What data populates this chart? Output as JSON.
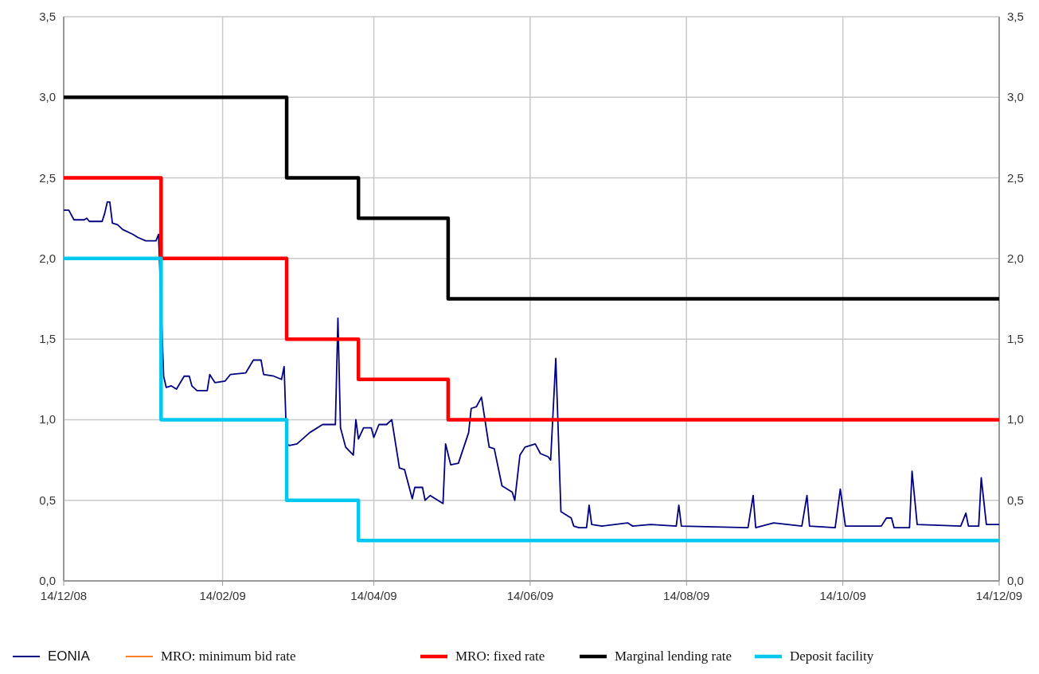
{
  "chart_data": {
    "type": "line",
    "xlim": [
      "2008-12-14",
      "2009-12-14"
    ],
    "xticks": [
      {
        "value": "2008-12-14",
        "label": "14/12/08"
      },
      {
        "value": "2009-02-14",
        "label": "14/02/09"
      },
      {
        "value": "2009-04-14",
        "label": "14/04/09"
      },
      {
        "value": "2009-06-14",
        "label": "14/06/09"
      },
      {
        "value": "2009-08-14",
        "label": "14/08/09"
      },
      {
        "value": "2009-10-14",
        "label": "14/10/09"
      },
      {
        "value": "2009-12-14",
        "label": "14/12/09"
      }
    ],
    "ylim": [
      0,
      3.5
    ],
    "yticks": [
      {
        "value": 0,
        "label": "0,0"
      },
      {
        "value": 0.5,
        "label": "0,5"
      },
      {
        "value": 1,
        "label": "1,0"
      },
      {
        "value": 1.5,
        "label": "1,5"
      },
      {
        "value": 2,
        "label": "2,0"
      },
      {
        "value": 2.5,
        "label": "2,5"
      },
      {
        "value": 3,
        "label": "3,0"
      },
      {
        "value": 3.5,
        "label": "3,5"
      }
    ],
    "y2lim": [
      0,
      3.5
    ],
    "y2ticks": [
      {
        "value": 0,
        "label": "0,0"
      },
      {
        "value": 0.5,
        "label": "0,5"
      },
      {
        "value": 1,
        "label": "1,0"
      },
      {
        "value": 1.5,
        "label": "1,5"
      },
      {
        "value": 2,
        "label": "2,0"
      },
      {
        "value": 2.5,
        "label": "2,5"
      },
      {
        "value": 3,
        "label": "3,0"
      },
      {
        "value": 3.5,
        "label": "3,5"
      }
    ],
    "grid": true,
    "legend": "bottom",
    "series": [
      {
        "name": "EONIA",
        "type": "line",
        "color": "#000080",
        "x": [
          "2008-12-14",
          "2008-12-16",
          "2008-12-18",
          "2008-12-22",
          "2008-12-23",
          "2008-12-24",
          "2008-12-29",
          "2008-12-30",
          "2008-12-31",
          "2009-01-01",
          "2009-01-02",
          "2009-01-04",
          "2009-01-06",
          "2009-01-10",
          "2009-01-12",
          "2009-01-15",
          "2009-01-19",
          "2009-01-20",
          "2009-01-22",
          "2009-01-23",
          "2009-01-25",
          "2009-01-27",
          "2009-01-30",
          "2009-02-01",
          "2009-02-02",
          "2009-02-04",
          "2009-02-08",
          "2009-02-09",
          "2009-02-11",
          "2009-02-15",
          "2009-02-17",
          "2009-02-23",
          "2009-02-26",
          "2009-03-01",
          "2009-03-02",
          "2009-03-06",
          "2009-03-09",
          "2009-03-10",
          "2009-03-11",
          "2009-03-12",
          "2009-03-15",
          "2009-03-20",
          "2009-03-25",
          "2009-03-30",
          "2009-03-31",
          "2009-04-01",
          "2009-04-03",
          "2009-04-06",
          "2009-04-07",
          "2009-04-08",
          "2009-04-10",
          "2009-04-13",
          "2009-04-14",
          "2009-04-16",
          "2009-04-19",
          "2009-04-21",
          "2009-04-24",
          "2009-04-26",
          "2009-04-29",
          "2009-04-30",
          "2009-05-03",
          "2009-05-04",
          "2009-05-06",
          "2009-05-11",
          "2009-05-12",
          "2009-05-14",
          "2009-05-17",
          "2009-05-21",
          "2009-05-22",
          "2009-05-24",
          "2009-05-26",
          "2009-05-29",
          "2009-05-31",
          "2009-06-03",
          "2009-06-07",
          "2009-06-08",
          "2009-06-10",
          "2009-06-12",
          "2009-06-16",
          "2009-06-18",
          "2009-06-21",
          "2009-06-22",
          "2009-06-24",
          "2009-06-26",
          "2009-06-30",
          "2009-07-01",
          "2009-07-03",
          "2009-07-06",
          "2009-07-07",
          "2009-07-08",
          "2009-07-12",
          "2009-07-22",
          "2009-07-24",
          "2009-07-31",
          "2009-08-10",
          "2009-08-11",
          "2009-08-12",
          "2009-09-07",
          "2009-09-09",
          "2009-09-10",
          "2009-09-17",
          "2009-09-28",
          "2009-09-30",
          "2009-10-01",
          "2009-10-11",
          "2009-10-13",
          "2009-10-15",
          "2009-10-29",
          "2009-10-31",
          "2009-11-02",
          "2009-11-03",
          "2009-11-09",
          "2009-11-10",
          "2009-11-12",
          "2009-11-29",
          "2009-12-01",
          "2009-12-02",
          "2009-12-06",
          "2009-12-07",
          "2009-12-09",
          "2009-12-14"
        ],
        "values": [
          2.3,
          2.3,
          2.24,
          2.24,
          2.25,
          2.23,
          2.23,
          2.28,
          2.35,
          2.35,
          2.22,
          2.21,
          2.18,
          2.15,
          2.13,
          2.11,
          2.11,
          2.15,
          1.27,
          1.2,
          1.21,
          1.19,
          1.27,
          1.27,
          1.21,
          1.18,
          1.18,
          1.28,
          1.23,
          1.24,
          1.28,
          1.29,
          1.37,
          1.37,
          1.28,
          1.27,
          1.25,
          1.33,
          0.85,
          0.84,
          0.85,
          0.92,
          0.97,
          0.97,
          1.63,
          0.95,
          0.83,
          0.78,
          1.0,
          0.88,
          0.95,
          0.95,
          0.89,
          0.97,
          0.97,
          1.0,
          0.7,
          0.69,
          0.51,
          0.58,
          0.58,
          0.5,
          0.53,
          0.48,
          0.85,
          0.72,
          0.73,
          0.92,
          1.07,
          1.08,
          1.14,
          0.83,
          0.82,
          0.59,
          0.55,
          0.5,
          0.78,
          0.83,
          0.85,
          0.79,
          0.77,
          0.75,
          1.38,
          0.43,
          0.39,
          0.34,
          0.33,
          0.33,
          0.47,
          0.35,
          0.34,
          0.36,
          0.34,
          0.35,
          0.34,
          0.47,
          0.34,
          0.33,
          0.53,
          0.33,
          0.36,
          0.34,
          0.53,
          0.34,
          0.33,
          0.57,
          0.34,
          0.34,
          0.39,
          0.39,
          0.33,
          0.33,
          0.68,
          0.35,
          0.34,
          0.42,
          0.34,
          0.34,
          0.64,
          0.35,
          0.35
        ]
      },
      {
        "name": "MRO: minimum bid rate",
        "color": "#ff7f27"
      },
      {
        "name": "MRO: fixed rate",
        "type": "step",
        "color": "#ff0000",
        "x": [
          "2008-12-14",
          "2009-01-21",
          "2009-03-11",
          "2009-04-08",
          "2009-05-13",
          "2009-12-14"
        ],
        "values": [
          2.5,
          2.0,
          1.5,
          1.25,
          1.0,
          1.0
        ]
      },
      {
        "name": "Marginal lending rate",
        "type": "step",
        "color": "#000000",
        "x": [
          "2008-12-14",
          "2009-03-11",
          "2009-04-08",
          "2009-05-13",
          "2009-12-14"
        ],
        "values": [
          3.0,
          2.5,
          2.25,
          1.75,
          1.75
        ]
      },
      {
        "name": "Deposit facility",
        "type": "step",
        "color": "#00c8f0",
        "x": [
          "2008-12-14",
          "2009-01-21",
          "2009-03-11",
          "2009-04-08",
          "2009-12-14"
        ],
        "values": [
          2.0,
          1.0,
          0.5,
          0.25,
          0.25
        ]
      }
    ]
  }
}
